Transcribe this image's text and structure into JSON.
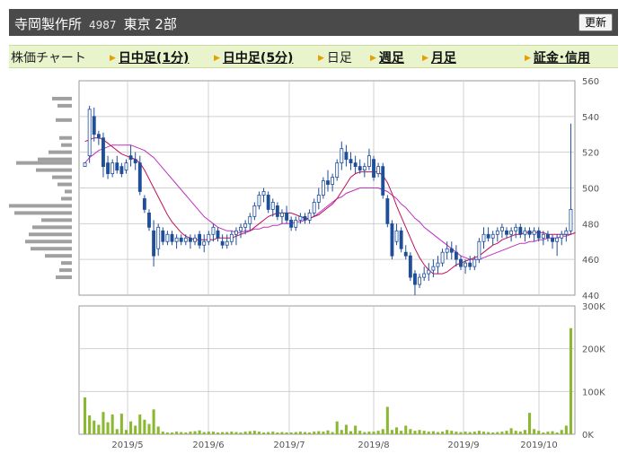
{
  "header": {
    "company": "寺岡製作所",
    "code": "4987",
    "market": "東京 2部",
    "refresh_label": "更新"
  },
  "nav": {
    "items": [
      {
        "label": "株価チャート",
        "link": false
      },
      {
        "label": "日中足(1分)",
        "link": true
      },
      {
        "label": "日中足(5分)",
        "link": true
      },
      {
        "label": "日足",
        "link": false
      },
      {
        "label": "週足",
        "link": true
      },
      {
        "label": "月足",
        "link": true
      },
      {
        "label": "証金･信用",
        "link": true
      }
    ]
  },
  "colors": {
    "candle": "#1f4e9a",
    "ma_short": "#c0105a",
    "ma_long": "#c030c0",
    "volume": "#8ab830",
    "profile": "#a0a0a0",
    "grid": "#d0d0d0"
  },
  "chart_data": [
    {
      "type": "candlestick",
      "title": "",
      "ylim": [
        440,
        560
      ],
      "yticks": [
        "560",
        "540",
        "520",
        "500",
        "480",
        "460",
        "440"
      ],
      "xticks": [
        "2019/5",
        "2019/6",
        "2019/7",
        "2019/8",
        "2019/9",
        "2019/10"
      ],
      "ohlc": [
        [
          512,
          514,
          512,
          514
        ],
        [
          518,
          546,
          514,
          544
        ],
        [
          540,
          545,
          526,
          530
        ],
        [
          530,
          532,
          524,
          528
        ],
        [
          528,
          531,
          506,
          512
        ],
        [
          514,
          518,
          505,
          508
        ],
        [
          508,
          516,
          506,
          514
        ],
        [
          514,
          518,
          508,
          510
        ],
        [
          512,
          514,
          506,
          508
        ],
        [
          510,
          516,
          508,
          514
        ],
        [
          518,
          524,
          512,
          516
        ],
        [
          516,
          520,
          510,
          514
        ],
        [
          514,
          518,
          496,
          498
        ],
        [
          494,
          496,
          486,
          488
        ],
        [
          486,
          488,
          476,
          478
        ],
        [
          476,
          482,
          456,
          462
        ],
        [
          466,
          480,
          462,
          478
        ],
        [
          476,
          478,
          468,
          470
        ],
        [
          470,
          476,
          468,
          474
        ],
        [
          474,
          476,
          468,
          470
        ],
        [
          470,
          474,
          466,
          472
        ],
        [
          472,
          474,
          468,
          470
        ],
        [
          470,
          474,
          468,
          472
        ],
        [
          472,
          474,
          466,
          470
        ],
        [
          470,
          474,
          468,
          472
        ],
        [
          474,
          476,
          466,
          468
        ],
        [
          468,
          474,
          464,
          470
        ],
        [
          470,
          476,
          468,
          474
        ],
        [
          474,
          480,
          470,
          478
        ],
        [
          476,
          478,
          470,
          472
        ],
        [
          470,
          474,
          466,
          468
        ],
        [
          468,
          474,
          466,
          470
        ],
        [
          470,
          476,
          468,
          474
        ],
        [
          474,
          478,
          468,
          476
        ],
        [
          476,
          480,
          472,
          478
        ],
        [
          478,
          482,
          474,
          480
        ],
        [
          480,
          486,
          476,
          484
        ],
        [
          484,
          492,
          482,
          490
        ],
        [
          490,
          498,
          488,
          496
        ],
        [
          496,
          500,
          492,
          498
        ],
        [
          496,
          498,
          486,
          488
        ],
        [
          488,
          494,
          484,
          492
        ],
        [
          490,
          492,
          482,
          484
        ],
        [
          484,
          488,
          480,
          486
        ],
        [
          486,
          490,
          480,
          482
        ],
        [
          482,
          484,
          476,
          478
        ],
        [
          478,
          484,
          476,
          482
        ],
        [
          482,
          486,
          480,
          484
        ],
        [
          484,
          486,
          480,
          482
        ],
        [
          482,
          488,
          480,
          486
        ],
        [
          486,
          494,
          484,
          492
        ],
        [
          492,
          500,
          488,
          496
        ],
        [
          496,
          506,
          494,
          504
        ],
        [
          504,
          510,
          498,
          502
        ],
        [
          502,
          508,
          498,
          506
        ],
        [
          506,
          516,
          504,
          514
        ],
        [
          514,
          526,
          510,
          522
        ],
        [
          520,
          524,
          512,
          516
        ],
        [
          516,
          520,
          510,
          514
        ],
        [
          514,
          518,
          508,
          512
        ],
        [
          512,
          516,
          508,
          510
        ],
        [
          510,
          514,
          506,
          512
        ],
        [
          512,
          522,
          510,
          518
        ],
        [
          516,
          518,
          504,
          506
        ],
        [
          508,
          514,
          506,
          512
        ],
        [
          512,
          514,
          494,
          496
        ],
        [
          494,
          496,
          478,
          480
        ],
        [
          480,
          482,
          460,
          462
        ],
        [
          470,
          480,
          468,
          476
        ],
        [
          476,
          478,
          464,
          466
        ],
        [
          464,
          468,
          460,
          462
        ],
        [
          462,
          464,
          448,
          450
        ],
        [
          452,
          454,
          440,
          446
        ],
        [
          446,
          452,
          444,
          450
        ],
        [
          450,
          456,
          448,
          452
        ],
        [
          452,
          458,
          448,
          454
        ],
        [
          454,
          460,
          450,
          456
        ],
        [
          456,
          462,
          452,
          458
        ],
        [
          458,
          466,
          456,
          464
        ],
        [
          464,
          470,
          460,
          466
        ],
        [
          466,
          470,
          460,
          464
        ],
        [
          464,
          468,
          456,
          460
        ],
        [
          460,
          462,
          454,
          456
        ],
        [
          456,
          460,
          452,
          458
        ],
        [
          458,
          462,
          454,
          456
        ],
        [
          456,
          462,
          454,
          460
        ],
        [
          460,
          472,
          458,
          470
        ],
        [
          470,
          478,
          466,
          474
        ],
        [
          474,
          478,
          470,
          472
        ],
        [
          472,
          476,
          468,
          474
        ],
        [
          474,
          478,
          470,
          476
        ],
        [
          476,
          480,
          472,
          478
        ],
        [
          476,
          478,
          472,
          474
        ],
        [
          474,
          478,
          470,
          476
        ],
        [
          476,
          480,
          472,
          478
        ],
        [
          478,
          480,
          472,
          474
        ],
        [
          474,
          478,
          470,
          476
        ],
        [
          476,
          478,
          472,
          474
        ],
        [
          474,
          478,
          470,
          476
        ],
        [
          476,
          478,
          470,
          472
        ],
        [
          472,
          476,
          468,
          474
        ],
        [
          474,
          476,
          470,
          472
        ],
        [
          472,
          474,
          466,
          470
        ],
        [
          470,
          474,
          462,
          472
        ],
        [
          472,
          476,
          468,
          474
        ],
        [
          474,
          478,
          470,
          476
        ],
        [
          476,
          536,
          474,
          488
        ]
      ],
      "ma_short": [
        526,
        527,
        528,
        528,
        527,
        525,
        523,
        521,
        519,
        518,
        517,
        516,
        514,
        510,
        505,
        500,
        495,
        490,
        485,
        481,
        478,
        475,
        473,
        472,
        471,
        471,
        471,
        471,
        471,
        472,
        472,
        472,
        472,
        473,
        474,
        475,
        476,
        478,
        480,
        482,
        484,
        485,
        486,
        486,
        486,
        486,
        485,
        484,
        483,
        483,
        484,
        485,
        487,
        489,
        491,
        494,
        498,
        502,
        506,
        508,
        509,
        509,
        509,
        509,
        509,
        507,
        503,
        497,
        490,
        484,
        478,
        472,
        466,
        461,
        457,
        454,
        452,
        452,
        452,
        453,
        455,
        457,
        458,
        459,
        460,
        461,
        462,
        464,
        466,
        468,
        469,
        471,
        472,
        473,
        474,
        474,
        475,
        475,
        475,
        475,
        475,
        474,
        474,
        474,
        474,
        474,
        474,
        475
      ],
      "ma_long": [
        514,
        517,
        519,
        521,
        522,
        523,
        524,
        524,
        524,
        524,
        524,
        523,
        522,
        521,
        519,
        517,
        514,
        511,
        508,
        505,
        502,
        499,
        496,
        493,
        490,
        487,
        484,
        482,
        480,
        478,
        477,
        476,
        476,
        475,
        475,
        476,
        476,
        477,
        477,
        478,
        478,
        479,
        479,
        480,
        480,
        480,
        481,
        481,
        482,
        483,
        484,
        486,
        488,
        490,
        492,
        494,
        495,
        497,
        498,
        499,
        500,
        500,
        500,
        500,
        500,
        499,
        498,
        496,
        494,
        491,
        489,
        486,
        483,
        481,
        478,
        476,
        474,
        472,
        470,
        468,
        466,
        464,
        462,
        461,
        460,
        460,
        460,
        461,
        462,
        463,
        464,
        465,
        466,
        467,
        468,
        469,
        469,
        470,
        470,
        471,
        471,
        472,
        472,
        472,
        473,
        473,
        474,
        475
      ],
      "volume": {
        "ylim": [
          0,
          300000
        ],
        "yticks": [
          "300K",
          "200K",
          "100K",
          "0K"
        ],
        "values": [
          86000,
          44000,
          32000,
          22000,
          52000,
          28000,
          46000,
          12000,
          48000,
          10000,
          30000,
          20000,
          46000,
          34000,
          24000,
          58000,
          18000,
          6000,
          4000,
          4000,
          6000,
          5000,
          4000,
          6000,
          7000,
          9000,
          5000,
          6000,
          6000,
          4000,
          5000,
          5000,
          6000,
          5000,
          4000,
          6000,
          7000,
          8000,
          6000,
          4000,
          5000,
          6000,
          4000,
          5000,
          4000,
          4000,
          5000,
          6000,
          5000,
          4000,
          6000,
          7000,
          6000,
          9000,
          5000,
          30000,
          10000,
          22000,
          7000,
          20000,
          8000,
          5000,
          6000,
          6000,
          8000,
          12000,
          64000,
          10000,
          16000,
          8000,
          20000,
          12000,
          8000,
          10000,
          8000,
          6000,
          7000,
          5000,
          6000,
          10000,
          8000,
          6000,
          5000,
          6000,
          5000,
          6000,
          8000,
          6000,
          5000,
          4000,
          5000,
          6000,
          8000,
          14000,
          8000,
          6000,
          10000,
          50000,
          12000,
          8000,
          4000,
          6000,
          7000,
          4000,
          10000,
          20000,
          248000
        ]
      },
      "profile": [
        [
          560,
          0
        ],
        [
          555,
          0
        ],
        [
          550,
          22
        ],
        [
          546,
          16
        ],
        [
          542,
          0
        ],
        [
          538,
          18
        ],
        [
          534,
          0
        ],
        [
          530,
          0
        ],
        [
          528,
          14
        ],
        [
          524,
          12
        ],
        [
          520,
          26
        ],
        [
          516,
          38
        ],
        [
          514,
          62
        ],
        [
          510,
          40
        ],
        [
          506,
          22
        ],
        [
          502,
          16
        ],
        [
          498,
          8
        ],
        [
          494,
          12
        ],
        [
          490,
          70
        ],
        [
          486,
          64
        ],
        [
          482,
          34
        ],
        [
          478,
          44
        ],
        [
          474,
          48
        ],
        [
          470,
          52
        ],
        [
          466,
          46
        ],
        [
          462,
          30
        ],
        [
          458,
          12
        ],
        [
          454,
          14
        ],
        [
          450,
          18
        ],
        [
          446,
          0
        ]
      ]
    }
  ]
}
